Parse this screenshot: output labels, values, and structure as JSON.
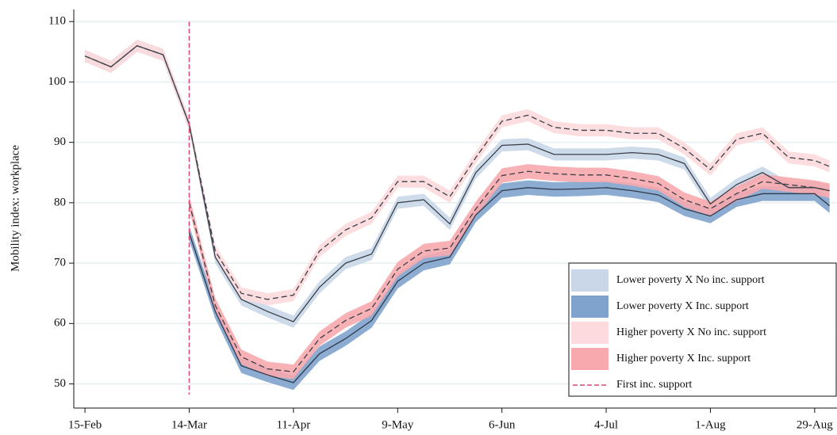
{
  "chart_data": {
    "type": "line",
    "y_label": "Mobility index: workplace",
    "x": [
      0,
      7,
      14,
      21,
      28,
      35,
      42,
      49,
      56,
      63,
      70,
      77,
      84,
      91,
      98,
      105,
      112,
      119,
      126,
      133,
      140,
      147,
      154,
      161,
      168,
      175,
      182,
      189,
      196,
      200
    ],
    "xlim": [
      -3,
      202
    ],
    "xticks": [
      {
        "value": 0,
        "label": "15-Feb"
      },
      {
        "value": 28,
        "label": "14-Mar"
      },
      {
        "value": 56,
        "label": "11-Apr"
      },
      {
        "value": 84,
        "label": "9-May"
      },
      {
        "value": 112,
        "label": "6-Jun"
      },
      {
        "value": 140,
        "label": "4-Jul"
      },
      {
        "value": 168,
        "label": "1-Aug"
      },
      {
        "value": 196,
        "label": "29-Aug"
      }
    ],
    "ylim": [
      46,
      112
    ],
    "yticks": [
      50,
      60,
      70,
      80,
      90,
      100,
      110
    ],
    "grid": true,
    "series": [
      {
        "name": "Lower poverty X No inc. support",
        "color": "#c9d7e9",
        "line_color": "#3a3f47",
        "dash": false,
        "ci": 1,
        "values": [
          104.3,
          102.5,
          106,
          104.5,
          93,
          71,
          64,
          62,
          60.3,
          66,
          70,
          71.5,
          80,
          80.5,
          76.5,
          85,
          89.5,
          89.7,
          88,
          88,
          88,
          88.3,
          88,
          86.5,
          79.8,
          83,
          85,
          82.5,
          82.5,
          82
        ]
      },
      {
        "name": "Lower poverty X Inc. support",
        "color": "#7fa3cc",
        "line_color": "#2f3a4a",
        "dash": false,
        "ci": 1.2,
        "values": [
          null,
          null,
          null,
          null,
          75,
          62,
          53,
          51.5,
          50.2,
          55,
          57.5,
          60.5,
          67,
          70,
          71,
          78,
          82,
          82.5,
          82.2,
          82.3,
          82.5,
          82,
          81.3,
          79,
          77.8,
          80.5,
          81.5,
          81.5,
          81.5,
          79.5
        ]
      },
      {
        "name": "Higher poverty X No inc. support",
        "color": "#fcdadd",
        "line_color": "#3a3f47",
        "dash": true,
        "ci": 1,
        "values": [
          104.3,
          102.5,
          106,
          104.5,
          93,
          72,
          65,
          64,
          64.7,
          72,
          75.5,
          77.5,
          83.5,
          83.5,
          81,
          87.5,
          93.5,
          94.5,
          92.5,
          92,
          92,
          91.5,
          91.5,
          89,
          85.5,
          90.5,
          91.5,
          87.5,
          87,
          86
        ]
      },
      {
        "name": "Higher poverty X Inc. support",
        "color": "#f7a9ad",
        "line_color": "#3a3f47",
        "dash": true,
        "ci": 1.2,
        "values": [
          null,
          null,
          null,
          null,
          80,
          63,
          54.5,
          52.5,
          52,
          57.5,
          60.5,
          62.5,
          69,
          72,
          72.5,
          79,
          84.5,
          85.2,
          84.8,
          84.6,
          84.6,
          84,
          83.2,
          80.5,
          79,
          81.5,
          83.5,
          83,
          82.5,
          82
        ]
      }
    ],
    "vline": {
      "x": 28,
      "name": "First inc. support",
      "color": "#d9467a"
    },
    "legend": "lower-right"
  }
}
